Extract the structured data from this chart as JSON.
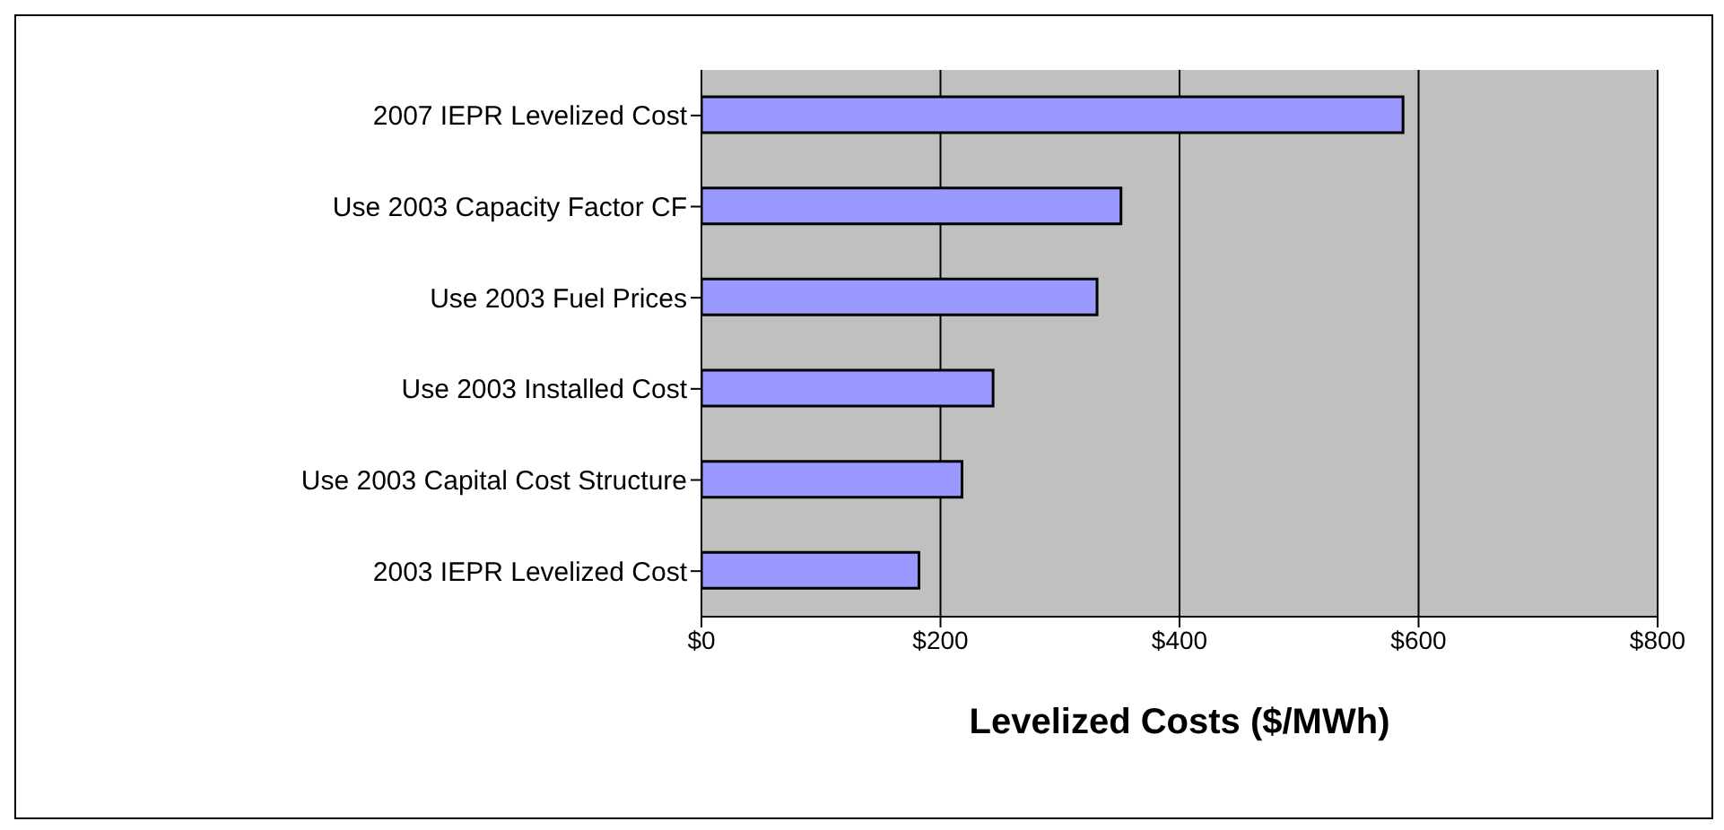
{
  "chart_data": {
    "type": "bar",
    "orientation": "horizontal",
    "xlabel": "Levelized Costs ($/MWh)",
    "categories": [
      "2007 IEPR Levelized Cost",
      "Use 2003 Capacity Factor CF",
      "Use 2003 Fuel Prices",
      "Use 2003 Installed Cost",
      "Use 2003 Capital Cost Structure",
      "2003 IEPR Levelized Cost"
    ],
    "values": [
      587,
      351,
      331,
      244,
      218,
      182
    ],
    "color": "#9999ff",
    "xlim": [
      0,
      800
    ],
    "xticks": [
      {
        "value": 0,
        "label": "$0"
      },
      {
        "value": 200,
        "label": "$200"
      },
      {
        "value": 400,
        "label": "$400"
      },
      {
        "value": 600,
        "label": "$600"
      },
      {
        "value": 800,
        "label": "$800"
      }
    ],
    "grid": "x"
  }
}
